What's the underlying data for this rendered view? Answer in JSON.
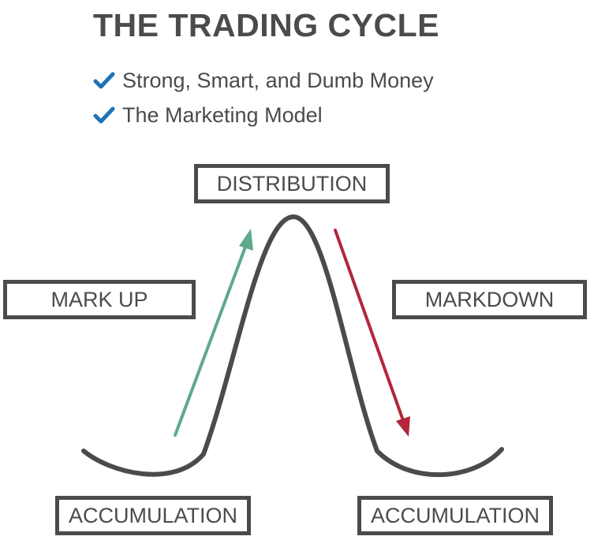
{
  "title": "THE TRADING CYCLE",
  "bullets": [
    {
      "icon": "checkmark-icon",
      "text": "Strong, Smart, and Dumb Money"
    },
    {
      "icon": "checkmark-icon",
      "text": "The Marketing Model"
    }
  ],
  "stages": {
    "distribution": "DISTRIBUTION",
    "markup": "MARK UP",
    "markdown": "MARKDOWN",
    "accumulation_left": "ACCUMULATION",
    "accumulation_right": "ACCUMULATION"
  },
  "colors": {
    "text": "#4a4b4d",
    "check": "#1f73b7",
    "curve": "#4a4b4d",
    "up_arrow": "#5fa98a",
    "down_arrow": "#b3263b"
  }
}
